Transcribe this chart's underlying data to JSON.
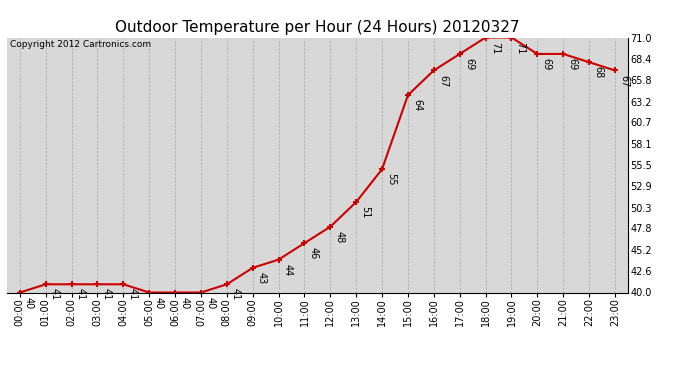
{
  "title": "Outdoor Temperature per Hour (24 Hours) 20120327",
  "copyright": "Copyright 2012 Cartronics.com",
  "hours": [
    "00:00",
    "01:00",
    "02:00",
    "03:00",
    "04:00",
    "05:00",
    "06:00",
    "07:00",
    "08:00",
    "09:00",
    "10:00",
    "11:00",
    "12:00",
    "13:00",
    "14:00",
    "15:00",
    "16:00",
    "17:00",
    "18:00",
    "19:00",
    "20:00",
    "21:00",
    "22:00",
    "23:00"
  ],
  "temps": [
    40,
    41,
    41,
    41,
    41,
    40,
    40,
    40,
    41,
    43,
    44,
    46,
    48,
    51,
    55,
    64,
    67,
    69,
    71,
    71,
    69,
    69,
    68,
    67
  ],
  "ylim": [
    40.0,
    71.0
  ],
  "yticks_right": [
    40.0,
    42.6,
    45.2,
    47.8,
    50.3,
    52.9,
    55.5,
    58.1,
    60.7,
    63.2,
    65.8,
    68.4,
    71.0
  ],
  "line_color": "#cc0000",
  "bg_color": "#d8d8d8",
  "plot_bg_color": "#d8d8d8",
  "outer_bg_color": "#ffffff",
  "grid_color": "#aaaaaa",
  "title_fontsize": 11,
  "label_fontsize": 7,
  "copyright_fontsize": 6.5,
  "annot_fontsize": 7
}
